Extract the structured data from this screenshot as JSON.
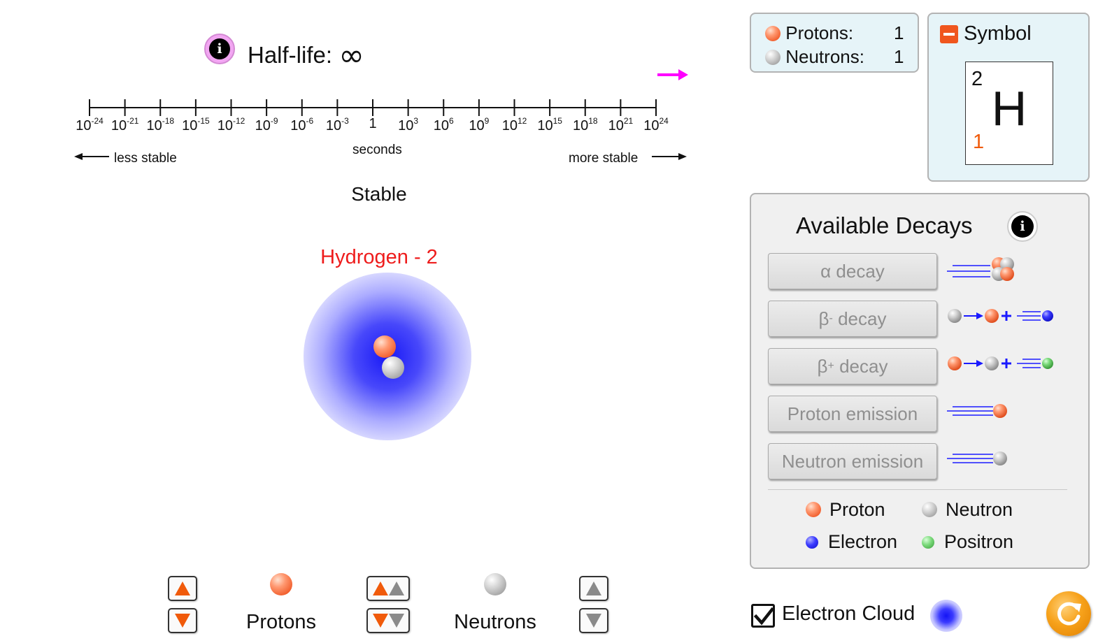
{
  "half_life": {
    "info_label": "i",
    "title": "Half-life:",
    "value": "∞",
    "tick_labels": [
      {
        "base": "10",
        "exp": "-24"
      },
      {
        "base": "10",
        "exp": "-21"
      },
      {
        "base": "10",
        "exp": "-18"
      },
      {
        "base": "10",
        "exp": "-15"
      },
      {
        "base": "10",
        "exp": "-12"
      },
      {
        "base": "10",
        "exp": "-9"
      },
      {
        "base": "10",
        "exp": "-6"
      },
      {
        "base": "10",
        "exp": "-3"
      },
      {
        "base": "1",
        "exp": ""
      },
      {
        "base": "10",
        "exp": "3"
      },
      {
        "base": "10",
        "exp": "6"
      },
      {
        "base": "10",
        "exp": "9"
      },
      {
        "base": "10",
        "exp": "12"
      },
      {
        "base": "10",
        "exp": "15"
      },
      {
        "base": "10",
        "exp": "18"
      },
      {
        "base": "10",
        "exp": "21"
      },
      {
        "base": "10",
        "exp": "24"
      }
    ],
    "unit_label": "seconds",
    "less_stable": "less stable",
    "more_stable": "more stable",
    "status": "Stable",
    "marker_color": "#ff00ff"
  },
  "atom": {
    "name": "Hydrogen - 2",
    "name_color": "#ee1c1c",
    "cloud_color": "#1414f5"
  },
  "controls": {
    "protons_label": "Protons",
    "neutrons_label": "Neutrons"
  },
  "counts": {
    "protons_label": "Protons:",
    "protons_value": "1",
    "neutrons_label": "Neutrons:",
    "neutrons_value": "1"
  },
  "symbol": {
    "title": "Symbol",
    "mass_number": "2",
    "element_symbol": "H",
    "atomic_number": "1"
  },
  "decays": {
    "title": "Available Decays",
    "info_label": "i",
    "buttons": [
      {
        "prefix": "α decay",
        "sup": "",
        "suffix": ""
      },
      {
        "prefix": "β",
        "sup": "-",
        "suffix": " decay"
      },
      {
        "prefix": "β",
        "sup": "+",
        "suffix": " decay"
      },
      {
        "prefix": "Proton emission",
        "sup": "",
        "suffix": ""
      },
      {
        "prefix": "Neutron emission",
        "sup": "",
        "suffix": ""
      }
    ],
    "legend": {
      "proton": "Proton",
      "neutron": "Neutron",
      "electron": "Electron",
      "positron": "Positron"
    }
  },
  "electron_cloud": {
    "label": "Electron Cloud",
    "checked": true
  },
  "colors": {
    "proton": "#f05a28",
    "neutron": "#9c9c9c",
    "electron": "#1212c8",
    "positron": "#78d878",
    "arrow_blue": "#1a1aff",
    "up_orange": "#f05a0a"
  }
}
